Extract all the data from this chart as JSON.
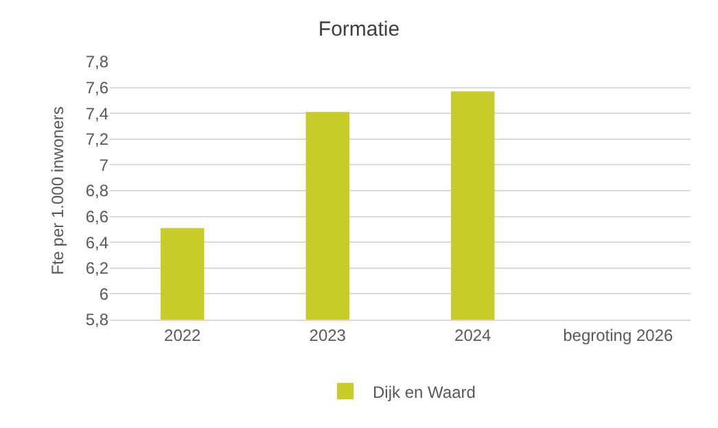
{
  "chart_data": {
    "type": "bar",
    "title": "Formatie",
    "ylabel": "Fte per 1.000 inwoners",
    "categories": [
      "2022",
      "2023",
      "2024",
      "begroting 2026"
    ],
    "series": [
      {
        "name": "Dijk en Waard",
        "color": "#c8cc28",
        "values": [
          6.51,
          7.41,
          7.57,
          null
        ]
      }
    ],
    "ylim": [
      5.8,
      7.8
    ],
    "yticks": [
      {
        "value": 5.8,
        "label": "5,8"
      },
      {
        "value": 6,
        "label": "6"
      },
      {
        "value": 6.2,
        "label": "6,2"
      },
      {
        "value": 6.4,
        "label": "6,4"
      },
      {
        "value": 6.6,
        "label": "6,6"
      },
      {
        "value": 6.8,
        "label": "6,8"
      },
      {
        "value": 7,
        "label": "7"
      },
      {
        "value": 7.2,
        "label": "7,2"
      },
      {
        "value": 7.4,
        "label": "7,4"
      },
      {
        "value": 7.6,
        "label": "7,6"
      },
      {
        "value": 7.8,
        "label": "7,8"
      }
    ],
    "grid": "y",
    "legend": "bottom"
  }
}
